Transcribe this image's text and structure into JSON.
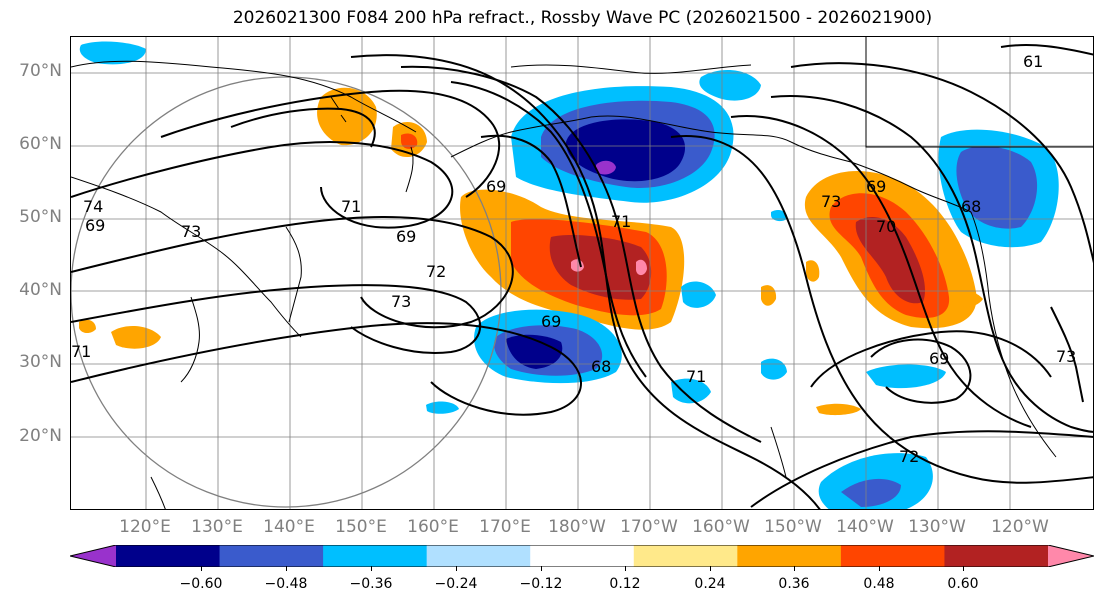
{
  "title": "2026021300 F084 200 hPa refract., Rossby Wave PC (2026021500 - 2026021900)",
  "map": {
    "lat_labels": [
      "70°N",
      "60°N",
      "50°N",
      "40°N",
      "30°N",
      "20°N"
    ],
    "lon_labels": [
      "120°E",
      "130°E",
      "140°E",
      "150°E",
      "160°E",
      "170°E",
      "180°W",
      "170°W",
      "160°W",
      "150°W",
      "140°W",
      "130°W",
      "120°W"
    ],
    "contour_labels": [
      "61",
      "74",
      "69",
      "71",
      "73",
      "69",
      "72",
      "73",
      "71",
      "69",
      "71",
      "69",
      "68",
      "71",
      "73",
      "69",
      "70",
      "68",
      "69",
      "72",
      "73"
    ],
    "colors": {
      "land_outline": "#000000",
      "grid": "#808080",
      "contour": "#000000"
    }
  },
  "colorbar": {
    "ticks": [
      "−0.60",
      "−0.48",
      "−0.36",
      "−0.24",
      "−0.12",
      "0.12",
      "0.24",
      "0.36",
      "0.48",
      "0.60"
    ],
    "colors": [
      "#9932CC",
      "#00008B",
      "#3A5BCC",
      "#00BFFF",
      "#B0E0FF",
      "#FFFFFF",
      "#FFE98A",
      "#FFA500",
      "#FF4500",
      "#B22222",
      "#FF88AA"
    ]
  }
}
